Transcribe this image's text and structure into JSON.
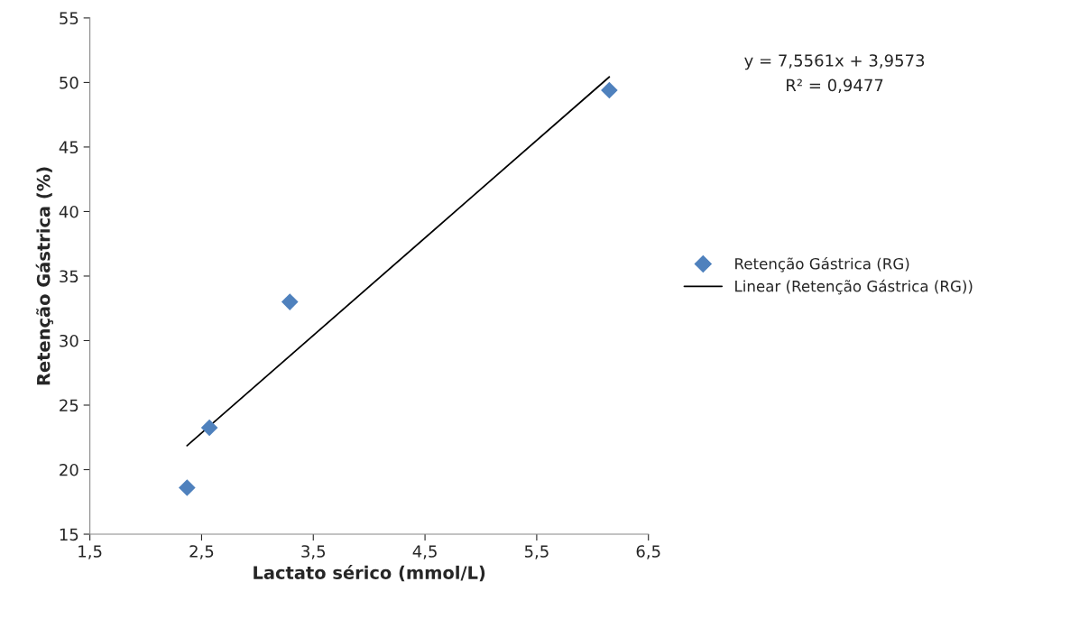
{
  "chart_data": {
    "type": "scatter",
    "xlabel": "Lactato sérico (mmol/L)",
    "ylabel": "Retenção Gástrica (%)",
    "series": [
      {
        "name": "Retenção Gástrica (RG)",
        "color": "#4f81bd",
        "marker": "diamond",
        "x": [
          2.37,
          2.57,
          3.29,
          6.15
        ],
        "values": [
          18.6,
          23.25,
          33.0,
          49.4
        ]
      },
      {
        "name": "Linear (Retenção Gástrica (RG))",
        "type": "line",
        "color": "#000000",
        "line_style": "solid",
        "x": [
          2.37,
          6.15
        ],
        "values": [
          21.86,
          50.43
        ]
      }
    ],
    "xlim": [
      1.5,
      6.5
    ],
    "ylim": [
      15,
      55
    ],
    "xticks": [
      {
        "value": 1.5,
        "label": "1,5"
      },
      {
        "value": 2.5,
        "label": "2,5"
      },
      {
        "value": 3.5,
        "label": "3,5"
      },
      {
        "value": 4.5,
        "label": "4,5"
      },
      {
        "value": 5.5,
        "label": "5,5"
      },
      {
        "value": 6.5,
        "label": "6,5"
      }
    ],
    "yticks": [
      15,
      20,
      25,
      30,
      35,
      40,
      45,
      50,
      55
    ],
    "annotations": [
      "y = 7,5561x + 3,9573",
      "R² = 0,9477"
    ],
    "legend": "right",
    "grid": false
  }
}
